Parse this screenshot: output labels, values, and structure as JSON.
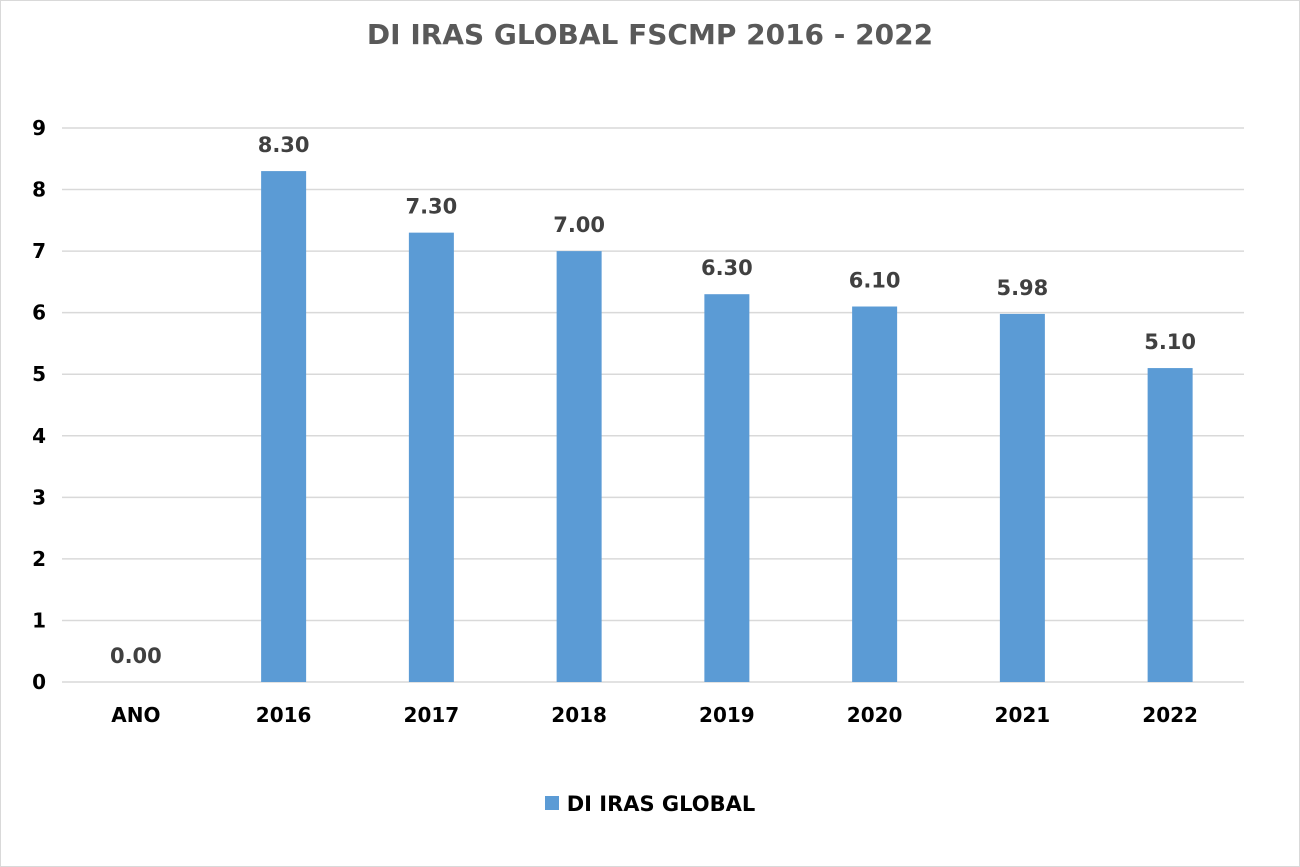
{
  "chart_data": {
    "type": "bar",
    "title": "DI IRAS GLOBAL FSCMP 2016 - 2022",
    "categories": [
      "ANO",
      "2016",
      "2017",
      "2018",
      "2019",
      "2020",
      "2021",
      "2022"
    ],
    "series": [
      {
        "name": "DI IRAS GLOBAL",
        "values": [
          0,
          8.3,
          7.3,
          7.0,
          6.3,
          6.1,
          5.98,
          5.1
        ],
        "data_labels": [
          "0.00",
          "8.30",
          "7.30",
          "7.00",
          "6.30",
          "6.10",
          "5.98",
          "5.10"
        ]
      }
    ],
    "ylim": [
      0,
      9
    ],
    "yticks": [
      "0",
      "1",
      "2",
      "3",
      "4",
      "5",
      "6",
      "7",
      "8",
      "9"
    ],
    "grid": true,
    "legend_position": "bottom",
    "colors": {
      "bar": "#5b9bd5",
      "grid": "#d9d9d9",
      "title": "#595959"
    }
  }
}
